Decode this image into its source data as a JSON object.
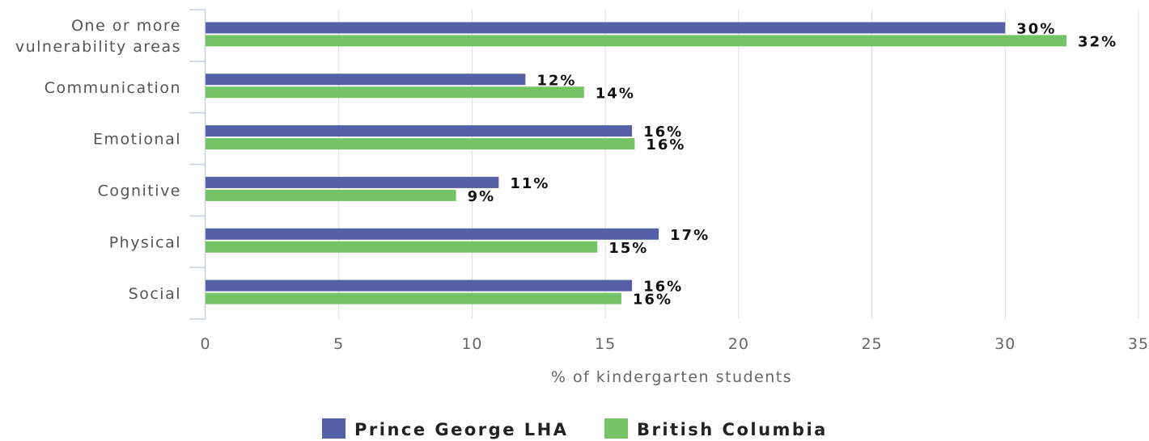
{
  "chart_data": {
    "type": "bar",
    "orientation": "horizontal",
    "categories": [
      [
        "One or more",
        "vulnerability areas"
      ],
      [
        "Communication"
      ],
      [
        "Emotional"
      ],
      [
        "Cognitive"
      ],
      [
        "Physical"
      ],
      [
        "Social"
      ]
    ],
    "series": [
      {
        "name": "Prince George LHA",
        "color": "#5560a6",
        "values": [
          30,
          12,
          16,
          11,
          17,
          16
        ],
        "labels": [
          "30%",
          "12%",
          "16%",
          "11%",
          "17%",
          "16%"
        ]
      },
      {
        "name": "British Columbia",
        "color": "#74c365",
        "values": [
          32.3,
          14.2,
          16.1,
          9.4,
          14.7,
          15.6
        ],
        "labels": [
          "32%",
          "14%",
          "16%",
          "9%",
          "15%",
          "16%"
        ]
      }
    ],
    "xlabel": "% of kindergarten students",
    "xlim": [
      0,
      35
    ],
    "xticks": [
      0,
      5,
      10,
      15,
      20,
      25,
      30,
      35
    ],
    "grid": "vertical",
    "legend": "bottom-center"
  }
}
